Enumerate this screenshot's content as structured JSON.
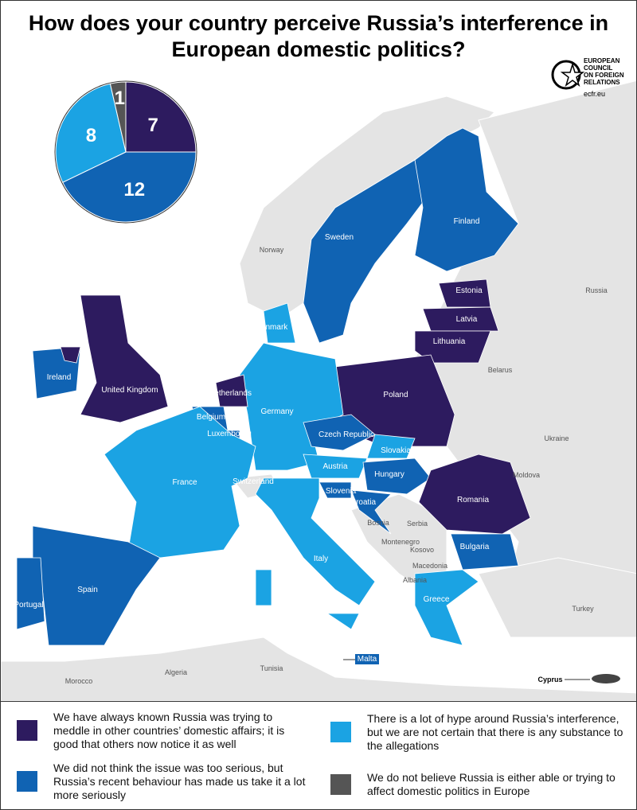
{
  "title": "How does your country perceive Russia’s interference in European domestic politics?",
  "logo": {
    "lines": [
      "EUROPEAN",
      "COUNCIL",
      "ON FOREIGN",
      "RELATIONS"
    ],
    "url": "ecfr.eu"
  },
  "chart_data": {
    "type": "pie",
    "categories": [
      "We have always known Russia was trying to meddle in other countries’ domestic affairs; it is good that others now notice it as well",
      "We did not think the issue was too serious, but Russia’s recent behaviour has made us take it a lot more seriously",
      "There is a lot of hype around Russia’s interference, but we are not certain that there is any substance to the allegations",
      "We do not believe Russia is either able or trying to affect domestic politics in Europe"
    ],
    "values": [
      7,
      12,
      8,
      1
    ],
    "colors": [
      "#2d1b5f",
      "#1063b3",
      "#1ba3e3",
      "#555555"
    ]
  },
  "map": {
    "labels": [
      "Norway",
      "Sweden",
      "Finland",
      "Russia",
      "Estonia",
      "Latvia",
      "Lithuania",
      "Belarus",
      "Denmark",
      "Ireland",
      "United Kingdom",
      "Netherlands",
      "Poland",
      "Germany",
      "Belgium",
      "Luxembourg",
      "Czech Republic",
      "Slovakia",
      "Ukraine",
      "Austria",
      "Hungary",
      "Moldova",
      "France",
      "Switzerland",
      "Slovenia",
      "Croatia",
      "Romania",
      "Bosnia",
      "Serbia",
      "Montenegro",
      "Kosovo",
      "Bulgaria",
      "Italy",
      "Macedonia",
      "Albania",
      "Spain",
      "Portugal",
      "Greece",
      "Turkey",
      "Malta",
      "Algeria",
      "Tunisia",
      "Morocco",
      "Cyprus"
    ]
  }
}
